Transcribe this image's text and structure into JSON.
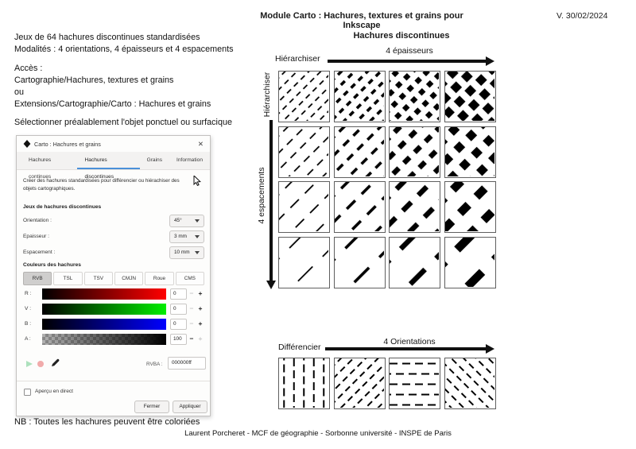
{
  "header": {
    "title": "Module Carto : Hachures, textures et grains pour Inkscape",
    "version": "V. 30/02/2024"
  },
  "intro": {
    "line1": "Jeux de 64 hachures discontinues standardisées",
    "line2": "Modalités : 4 orientations, 4 épaisseurs et 4 espacements",
    "acces": "Accès :",
    "path1": "Cartographie/Hachures, textures et grains",
    "or": "ou",
    "path2": "Extensions/Cartographie/Carto : Hachures et grains",
    "select": "Sélectionner préalablement l'objet ponctuel ou surfacique"
  },
  "dialog": {
    "title": "Carto : Hachures et grains",
    "close_glyph": "✕",
    "tabs": [
      {
        "label": "Hachures continues",
        "active": false
      },
      {
        "label": "Hachures discontinues",
        "active": true
      },
      {
        "label": "Grains",
        "active": false
      },
      {
        "label": "Information",
        "active": false
      }
    ],
    "description": "Créer des hachures standardisées pour différencier ou hiérachiser des objets cartographiques.",
    "section_jeux": "Jeux de hachures discontinues",
    "fields": [
      {
        "label": "Orientation :",
        "value": "45°"
      },
      {
        "label": "Epaisseur :",
        "value": "3 mm"
      },
      {
        "label": "Espacement :",
        "value": "10 mm"
      }
    ],
    "section_couleurs": "Couleurs des hachures",
    "color_modes": [
      {
        "label": "RVB",
        "active": true
      },
      {
        "label": "TSL",
        "active": false
      },
      {
        "label": "TSV",
        "active": false
      },
      {
        "label": "CMJN",
        "active": false
      },
      {
        "label": "Roue",
        "active": false
      },
      {
        "label": "CMS",
        "active": false
      }
    ],
    "sliders": [
      {
        "label": "R :",
        "value": "0",
        "gradient_from": "#000000",
        "gradient_to": "#ff0000",
        "minus_enabled": false,
        "plus_enabled": true,
        "checker": false
      },
      {
        "label": "V :",
        "value": "0",
        "gradient_from": "#000000",
        "gradient_to": "#00ee00",
        "minus_enabled": false,
        "plus_enabled": true,
        "checker": false
      },
      {
        "label": "B :",
        "value": "0",
        "gradient_from": "#000000",
        "gradient_to": "#0000ff",
        "minus_enabled": false,
        "plus_enabled": true,
        "checker": false
      },
      {
        "label": "A :",
        "value": "100",
        "gradient_from": "rgba(0,0,0,0.25)",
        "gradient_to": "#000000",
        "minus_enabled": true,
        "plus_enabled": false,
        "checker": true
      }
    ],
    "minus_glyph": "−",
    "plus_glyph": "+",
    "rvba_label": "RVBA :",
    "rvba_value": "000000ff",
    "preview_checkbox": "Aperçu en direct",
    "button_fermer": "Fermer",
    "button_appliquer": "Appliquer"
  },
  "diagram": {
    "title": "Hachures discontinues",
    "axis_top": "4 épaisseurs",
    "label_top_left": "Hiérarchiser",
    "label_left_vertical": "Hiérarchiser",
    "axis_left": "4 espacements",
    "label_bottom": "Différencier",
    "axis_bottom": "4 Orientations",
    "hatch_color": "#000000",
    "main_grid": {
      "angle": -45,
      "thicknesses": [
        1.8,
        3.6,
        6.5,
        10.5
      ],
      "row_params": [
        {
          "pitch": 9.5,
          "dash": 7,
          "gap": 4.5
        },
        {
          "pitch": 14,
          "dash": 10,
          "gap": 6.5
        },
        {
          "pitch": 21,
          "dash": 15,
          "gap": 10
        },
        {
          "pitch": 36,
          "dash": 26,
          "gap": 17
        }
      ]
    },
    "orientation_tiles": [
      {
        "angle": 90,
        "thickness": 2,
        "dash": 10,
        "gap": 5,
        "pitch": 12.5
      },
      {
        "angle": -45,
        "thickness": 2,
        "dash": 8,
        "gap": 5,
        "pitch": 11
      },
      {
        "angle": 0,
        "thickness": 2,
        "dash": 10,
        "gap": 6,
        "pitch": 13
      },
      {
        "angle": 45,
        "thickness": 2,
        "dash": 8,
        "gap": 5,
        "pitch": 11
      }
    ]
  },
  "footer": {
    "nb": "NB : Toutes les hachures peuvent être coloriées",
    "credit": "Laurent Porcheret - MCF de géographie - Sorbonne université - INSPE de Paris"
  }
}
